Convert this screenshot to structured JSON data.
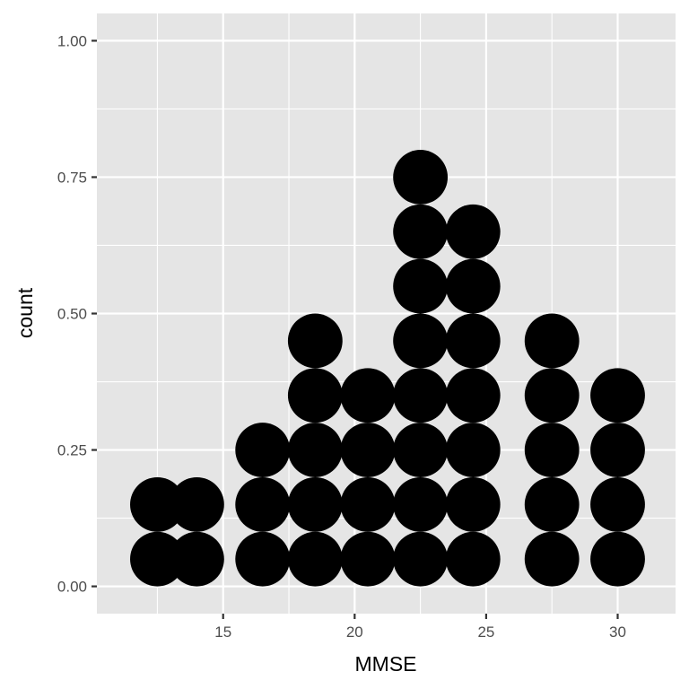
{
  "chart_data": {
    "type": "dotplot",
    "xlabel": "MMSE",
    "ylabel": "count",
    "xlim": [
      10.2,
      32.2
    ],
    "ylim": [
      -0.05,
      1.05
    ],
    "x_ticks": [
      {
        "value": 15,
        "label": "15"
      },
      {
        "value": 20,
        "label": "20"
      },
      {
        "value": 25,
        "label": "25"
      },
      {
        "value": 30,
        "label": "30"
      }
    ],
    "y_ticks": [
      {
        "value": 0.0,
        "label": "0.00"
      },
      {
        "value": 0.25,
        "label": "0.25"
      },
      {
        "value": 0.5,
        "label": "0.50"
      },
      {
        "value": 0.75,
        "label": "0.75"
      },
      {
        "value": 1.0,
        "label": "1.00"
      }
    ],
    "grid": true,
    "dot_color": "#000000",
    "panel_background": "#e5e5e5",
    "grid_color": "#ffffff",
    "bins": [
      {
        "x": 12.5,
        "count": 2
      },
      {
        "x": 14.0,
        "count": 2
      },
      {
        "x": 16.5,
        "count": 3
      },
      {
        "x": 18.5,
        "count": 5
      },
      {
        "x": 20.5,
        "count": 4
      },
      {
        "x": 22.5,
        "count": 8
      },
      {
        "x": 24.5,
        "count": 7
      },
      {
        "x": 27.5,
        "count": 5
      },
      {
        "x": 30.0,
        "count": 4
      }
    ]
  }
}
